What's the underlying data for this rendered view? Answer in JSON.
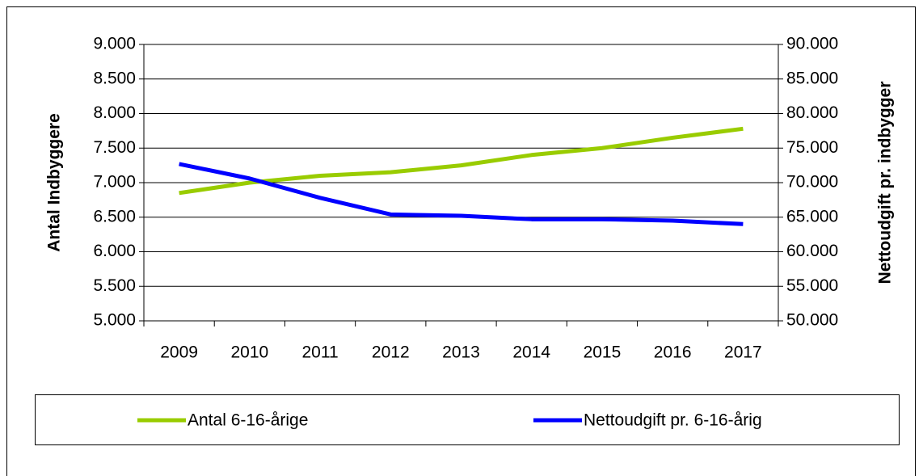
{
  "chart_data": {
    "type": "line",
    "categories": [
      "2009",
      "2010",
      "2011",
      "2012",
      "2013",
      "2014",
      "2015",
      "2016",
      "2017"
    ],
    "y_label": "Antal Indbyggere",
    "y2_label": "Nettoudgift pr. indbygger",
    "ylim": [
      5000,
      9000
    ],
    "yticks": [
      {
        "value": 5000,
        "label": "5.000"
      },
      {
        "value": 5500,
        "label": "5.500"
      },
      {
        "value": 6000,
        "label": "6.000"
      },
      {
        "value": 6500,
        "label": "6.500"
      },
      {
        "value": 7000,
        "label": "7.000"
      },
      {
        "value": 7500,
        "label": "7.500"
      },
      {
        "value": 8000,
        "label": "8.000"
      },
      {
        "value": 8500,
        "label": "8.500"
      },
      {
        "value": 9000,
        "label": "9.000"
      }
    ],
    "y2lim": [
      50000,
      90000
    ],
    "y2ticks": [
      {
        "value": 50000,
        "label": "50.000"
      },
      {
        "value": 55000,
        "label": "55.000"
      },
      {
        "value": 60000,
        "label": "60.000"
      },
      {
        "value": 65000,
        "label": "65.000"
      },
      {
        "value": 70000,
        "label": "70.000"
      },
      {
        "value": 75000,
        "label": "75.000"
      },
      {
        "value": 80000,
        "label": "80.000"
      },
      {
        "value": 85000,
        "label": "85.000"
      },
      {
        "value": 90000,
        "label": "90.000"
      }
    ],
    "grid": true,
    "legend": "bottom",
    "series": [
      {
        "name": "Antal 6-16-årige",
        "color": "#99cc00",
        "values": [
          6850,
          7000,
          7100,
          7150,
          7250,
          7400,
          7500,
          7650,
          7780
        ]
      },
      {
        "name": "Nettoudgift pr. 6-16-årig",
        "color": "#0000ff",
        "axis": "y2",
        "values": [
          72700,
          70600,
          67800,
          65400,
          65200,
          64700,
          64700,
          64500,
          64000
        ]
      }
    ]
  }
}
